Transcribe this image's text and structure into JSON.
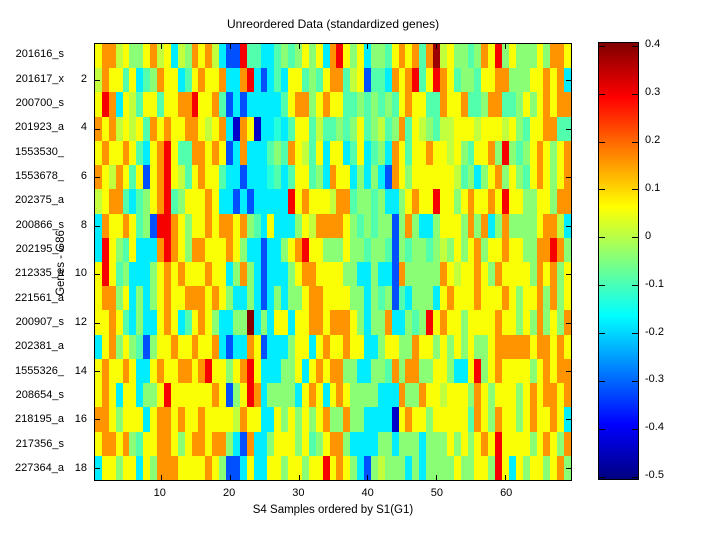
{
  "figure": {
    "title": "Unreordered Data (standardized genes)",
    "xlabel": "S4 Samples ordered by S1(G1)",
    "ylabel": "Genes - G86"
  },
  "chart_data": {
    "type": "heatmap",
    "title": "Unreordered Data (standardized genes)",
    "xlabel": "S4 Samples ordered by S1(G1)",
    "ylabel": "Genes - G86",
    "n_rows": 18,
    "n_cols": 69,
    "x_ticks": [
      10,
      20,
      30,
      40,
      50,
      60
    ],
    "y_ticks": [
      2,
      4,
      6,
      8,
      10,
      12,
      14,
      16,
      18
    ],
    "row_labels": [
      "201616_s",
      "201617_x",
      "200700_s",
      "201923_a",
      "1553530_",
      "1553678_",
      "202375_a",
      "200866_s",
      "202195_s",
      "212335_a",
      "221561_a",
      "200907_s",
      "202381_a",
      "1555326_",
      "208654_s",
      "218195_a",
      "217356_s",
      "227364_a"
    ],
    "color_scale": {
      "colormap": "jet",
      "min": -0.505,
      "max": 0.406,
      "colorbar_ticks": [
        0.4,
        0.3,
        0.2,
        0.1,
        0,
        -0.1,
        -0.2,
        -0.3,
        -0.4,
        -0.5
      ]
    },
    "values": [
      [
        0.06,
        0.16,
        0.16,
        0.01,
        0.06,
        -0.04,
        -0.04,
        0.06,
        0.16,
        0.01,
        0.06,
        -0.18,
        0.01,
        -0.04,
        0.16,
        0.06,
        0.16,
        0.01,
        -0.18,
        -0.32,
        -0.32,
        0.3,
        -0.09,
        -0.09,
        -0.18,
        -0.18,
        -0.09,
        -0.04,
        -0.09,
        -0.04,
        0.06,
        -0.04,
        0.06,
        -0.18,
        0.16,
        0.3,
        0.06,
        -0.04,
        0.06,
        -0.18,
        -0.04,
        -0.04,
        -0.09,
        0.06,
        0.16,
        0.06,
        0.16,
        -0.09,
        0.16,
        0.38,
        0.01,
        0.06,
        -0.04,
        -0.04,
        -0.09,
        -0.04,
        0.16,
        0.06,
        0.3,
        -0.04,
        0.06,
        -0.04,
        -0.04,
        -0.04,
        0.06,
        -0.04,
        0.16,
        0.16,
        0.06
      ],
      [
        0.01,
        0.16,
        0.06,
        0.06,
        -0.09,
        0.06,
        -0.18,
        -0.09,
        -0.04,
        0.16,
        0.06,
        0.06,
        -0.18,
        -0.09,
        0.06,
        0.16,
        0.06,
        0.06,
        0.16,
        -0.18,
        -0.18,
        0.16,
        0.3,
        -0.18,
        -0.32,
        -0.18,
        -0.09,
        -0.18,
        0.06,
        0.06,
        -0.09,
        -0.04,
        -0.09,
        0.06,
        0.16,
        0.16,
        -0.09,
        0.01,
        0.06,
        -0.32,
        -0.09,
        -0.09,
        -0.18,
        0.16,
        0.06,
        0.16,
        0.3,
        -0.09,
        0.06,
        0.3,
        0.16,
        0.06,
        -0.09,
        -0.04,
        -0.04,
        -0.09,
        0.06,
        0.06,
        0.16,
        0.16,
        -0.04,
        -0.04,
        -0.04,
        0.06,
        0.06,
        0.16,
        0.06,
        0.16,
        -0.18
      ],
      [
        0.06,
        0.3,
        0.16,
        -0.18,
        0.06,
        0.01,
        -0.09,
        0.06,
        0.06,
        -0.09,
        0.06,
        0.06,
        0.16,
        0.16,
        0.3,
        0.06,
        0.06,
        0.16,
        -0.09,
        -0.32,
        -0.18,
        -0.32,
        -0.18,
        -0.18,
        -0.18,
        -0.18,
        -0.18,
        -0.09,
        0.06,
        0.16,
        0.16,
        -0.04,
        0.06,
        0.16,
        0.06,
        0.06,
        -0.09,
        -0.09,
        -0.04,
        -0.09,
        -0.04,
        -0.09,
        -0.04,
        -0.09,
        0.06,
        0.16,
        0.06,
        0.06,
        -0.09,
        -0.09,
        0.16,
        0.06,
        0.06,
        0.16,
        -0.09,
        -0.09,
        -0.04,
        0.16,
        0.16,
        -0.09,
        -0.09,
        -0.04,
        0.06,
        -0.04,
        0.06,
        0.16,
        0.06,
        0.16,
        0.16
      ],
      [
        0.16,
        0.06,
        0.16,
        0.01,
        0.06,
        0.01,
        0.06,
        -0.09,
        0.16,
        0.06,
        0.16,
        0.06,
        0.06,
        0.16,
        0.16,
        0.06,
        0.01,
        0.06,
        0.16,
        -0.18,
        -0.44,
        0.16,
        0.06,
        -0.44,
        -0.18,
        -0.18,
        -0.13,
        -0.18,
        -0.09,
        0.06,
        0.06,
        -0.09,
        0.01,
        -0.09,
        -0.09,
        -0.04,
        -0.09,
        -0.04,
        0.06,
        -0.09,
        -0.04,
        0.01,
        -0.09,
        -0.04,
        0.16,
        -0.09,
        0.06,
        0.01,
        -0.04,
        -0.09,
        0.01,
        0.01,
        0.06,
        0.06,
        0.06,
        0.01,
        0.06,
        0.06,
        0.06,
        0.01,
        0.06,
        -0.04,
        -0.09,
        0.06,
        0.06,
        0.16,
        0.16,
        -0.09,
        -0.09
      ],
      [
        0.06,
        0.16,
        0.06,
        0.06,
        0.16,
        0.06,
        -0.09,
        -0.18,
        0.06,
        0.16,
        0.3,
        0.06,
        -0.09,
        -0.09,
        0.16,
        0.16,
        0.06,
        0.16,
        0.06,
        -0.32,
        -0.18,
        0.16,
        -0.18,
        -0.18,
        -0.18,
        -0.09,
        -0.04,
        -0.09,
        0.16,
        0.06,
        0.01,
        -0.09,
        0.06,
        -0.18,
        0.06,
        0.06,
        -0.18,
        -0.09,
        0.06,
        -0.18,
        -0.09,
        -0.04,
        -0.18,
        0.16,
        0.06,
        -0.09,
        0.06,
        0.06,
        0.16,
        0.06,
        0.06,
        0.01,
        0.06,
        -0.04,
        -0.09,
        0.06,
        0.06,
        0.16,
        -0.04,
        0.3,
        -0.04,
        -0.09,
        -0.04,
        0.06,
        0.16,
        0.06,
        -0.04,
        0.06,
        0.16
      ],
      [
        0.16,
        0.06,
        0.01,
        0.16,
        0.06,
        -0.09,
        0.06,
        -0.32,
        0.06,
        0.16,
        0.3,
        0.06,
        0.01,
        -0.09,
        0.06,
        0.16,
        0.06,
        0.06,
        -0.09,
        -0.18,
        -0.18,
        -0.32,
        -0.18,
        -0.18,
        -0.18,
        -0.13,
        -0.09,
        -0.18,
        -0.09,
        0.06,
        0.06,
        -0.09,
        -0.04,
        -0.18,
        0.16,
        0.06,
        0.06,
        -0.18,
        -0.04,
        -0.18,
        -0.04,
        -0.18,
        -0.32,
        0.16,
        0.06,
        -0.04,
        0.06,
        0.06,
        0.06,
        0.06,
        0.06,
        0.06,
        0.01,
        -0.09,
        -0.04,
        -0.18,
        -0.04,
        0.06,
        0.16,
        -0.04,
        0.06,
        -0.04,
        -0.09,
        0.06,
        0.16,
        0.06,
        -0.04,
        0.06,
        0.16
      ],
      [
        0.01,
        0.06,
        0.16,
        0.16,
        -0.09,
        -0.18,
        -0.09,
        -0.04,
        0.06,
        0.16,
        0.3,
        -0.09,
        -0.04,
        0.06,
        0.06,
        0.06,
        0.16,
        0.06,
        -0.18,
        -0.18,
        -0.32,
        -0.18,
        -0.32,
        -0.18,
        -0.18,
        -0.18,
        -0.18,
        -0.18,
        0.3,
        0.06,
        0.16,
        0.06,
        0.06,
        0.06,
        0.01,
        0.16,
        0.16,
        -0.09,
        -0.04,
        -0.04,
        -0.09,
        -0.04,
        -0.18,
        -0.18,
        -0.04,
        0.06,
        0.16,
        0.06,
        0.06,
        0.3,
        0.06,
        0.06,
        -0.04,
        0.06,
        0.16,
        0.06,
        0.06,
        0.16,
        0.06,
        0.3,
        0.06,
        0.06,
        -0.04,
        -0.04,
        0.06,
        0.06,
        -0.04,
        0.16,
        0.16
      ],
      [
        -0.18,
        0.16,
        0.06,
        0.06,
        0.16,
        0.06,
        -0.09,
        -0.04,
        -0.32,
        0.3,
        0.3,
        0.16,
        0.06,
        -0.04,
        0.06,
        0.06,
        0.16,
        0.06,
        0.16,
        0.16,
        0.06,
        0.16,
        -0.04,
        -0.09,
        -0.18,
        0.06,
        -0.18,
        -0.18,
        -0.18,
        -0.04,
        0.06,
        0.01,
        0.16,
        0.16,
        0.16,
        0.16,
        0.06,
        -0.04,
        -0.09,
        -0.04,
        -0.09,
        -0.04,
        -0.04,
        -0.32,
        -0.04,
        0.16,
        -0.04,
        -0.18,
        -0.18,
        -0.04,
        0.06,
        0.06,
        0.06,
        -0.04,
        0.16,
        -0.04,
        0.16,
        -0.18,
        -0.04,
        0.16,
        -0.04,
        -0.04,
        -0.04,
        -0.04,
        0.06,
        0.16,
        0.16,
        0.01,
        -0.18
      ],
      [
        -0.18,
        0.3,
        0.06,
        -0.04,
        -0.09,
        0.06,
        -0.18,
        -0.18,
        -0.18,
        0.16,
        0.3,
        0.16,
        0.06,
        -0.04,
        0.16,
        0.16,
        0.06,
        0.06,
        0.06,
        0.16,
        0.06,
        -0.04,
        -0.18,
        -0.18,
        -0.32,
        -0.18,
        -0.18,
        -0.04,
        0.06,
        0.16,
        0.3,
        0.06,
        0.06,
        -0.04,
        -0.04,
        -0.04,
        0.06,
        -0.04,
        -0.04,
        -0.09,
        -0.04,
        -0.04,
        -0.09,
        -0.32,
        -0.04,
        -0.09,
        -0.04,
        -0.04,
        -0.09,
        -0.04,
        0.01,
        -0.04,
        0.06,
        -0.04,
        0.06,
        0.16,
        -0.04,
        0.06,
        0.06,
        0.16,
        0.06,
        0.06,
        -0.04,
        -0.04,
        0.16,
        0.16,
        0.3,
        0.16,
        -0.04
      ],
      [
        0.06,
        0.3,
        0.06,
        -0.09,
        -0.04,
        -0.18,
        -0.18,
        -0.18,
        -0.04,
        0.06,
        0.16,
        0.06,
        0.16,
        0.06,
        0.06,
        0.06,
        0.16,
        0.06,
        0.06,
        -0.18,
        -0.04,
        0.16,
        -0.04,
        -0.18,
        -0.32,
        -0.18,
        -0.18,
        -0.18,
        -0.04,
        0.06,
        0.16,
        0.16,
        0.06,
        0.06,
        0.06,
        0.06,
        -0.04,
        -0.04,
        -0.18,
        -0.18,
        -0.04,
        -0.18,
        -0.18,
        -0.32,
        0.16,
        -0.04,
        -0.04,
        -0.04,
        -0.04,
        -0.04,
        0.16,
        0.06,
        0.01,
        0.06,
        0.06,
        0.16,
        0.06,
        -0.04,
        0.16,
        0.06,
        0.06,
        0.06,
        0.06,
        -0.04,
        0.16,
        0.06,
        0.16,
        -0.04,
        0.06
      ],
      [
        0.06,
        0.16,
        0.16,
        -0.04,
        0.06,
        -0.18,
        -0.04,
        -0.18,
        -0.04,
        0.06,
        0.16,
        0.06,
        0.06,
        0.16,
        0.16,
        0.16,
        0.06,
        0.16,
        0.06,
        -0.04,
        -0.18,
        -0.18,
        -0.04,
        -0.18,
        -0.32,
        -0.18,
        -0.04,
        -0.18,
        -0.04,
        -0.04,
        0.06,
        0.16,
        0.16,
        0.06,
        0.06,
        0.06,
        0.06,
        -0.04,
        -0.04,
        -0.18,
        -0.04,
        -0.09,
        -0.04,
        -0.32,
        -0.09,
        -0.18,
        -0.04,
        -0.04,
        -0.04,
        -0.18,
        0.06,
        0.16,
        0.06,
        0.06,
        0.06,
        0.16,
        0.06,
        0.06,
        0.06,
        0.16,
        0.06,
        -0.04,
        0.06,
        0.06,
        0.16,
        -0.04,
        0.16,
        -0.04,
        0.06
      ],
      [
        0.06,
        0.06,
        0.16,
        0.06,
        -0.09,
        -0.18,
        -0.04,
        -0.18,
        -0.18,
        0.06,
        0.16,
        0.06,
        -0.18,
        -0.09,
        0.06,
        0.16,
        0.06,
        -0.04,
        -0.18,
        -0.18,
        -0.04,
        -0.04,
        0.4,
        -0.18,
        -0.04,
        -0.18,
        0.06,
        0.06,
        -0.18,
        0.06,
        0.06,
        0.16,
        0.16,
        0.06,
        0.16,
        0.16,
        0.16,
        0.06,
        -0.04,
        -0.18,
        -0.04,
        -0.04,
        0.16,
        -0.18,
        -0.18,
        -0.04,
        -0.09,
        -0.04,
        0.3,
        0.06,
        0.16,
        0.06,
        0.06,
        -0.04,
        0.06,
        0.06,
        0.06,
        0.06,
        0.16,
        0.06,
        0.06,
        -0.04,
        0.06,
        -0.04,
        0.16,
        -0.04,
        0.06,
        -0.04,
        0.16
      ],
      [
        -0.18,
        0.06,
        0.16,
        -0.04,
        0.06,
        -0.04,
        -0.09,
        -0.32,
        -0.04,
        0.06,
        0.06,
        0.16,
        0.06,
        0.06,
        0.16,
        0.06,
        0.06,
        0.16,
        -0.18,
        -0.32,
        -0.18,
        -0.18,
        0.16,
        0.06,
        -0.32,
        -0.18,
        -0.18,
        -0.18,
        -0.04,
        0.06,
        0.06,
        -0.18,
        0.06,
        0.16,
        0.06,
        0.06,
        0.16,
        0.06,
        0.06,
        -0.18,
        -0.18,
        -0.04,
        0.06,
        0.06,
        -0.04,
        -0.04,
        0.16,
        0.06,
        0.06,
        -0.04,
        0.06,
        -0.04,
        0.06,
        -0.04,
        0.06,
        -0.04,
        -0.04,
        0.06,
        0.16,
        0.16,
        0.16,
        0.16,
        0.16,
        0.06,
        0.16,
        0.16,
        0.06,
        0.16,
        0.06
      ],
      [
        0.06,
        0.16,
        0.06,
        0.06,
        0.16,
        0.06,
        -0.18,
        -0.18,
        0.06,
        0.16,
        0.06,
        0.06,
        0.16,
        0.16,
        0.06,
        0.16,
        0.3,
        0.06,
        0.06,
        -0.04,
        0.06,
        0.16,
        0.3,
        0.06,
        -0.18,
        -0.18,
        -0.18,
        -0.04,
        -0.04,
        0.06,
        -0.18,
        0.06,
        0.16,
        0.06,
        0.16,
        0.16,
        -0.04,
        -0.04,
        -0.18,
        -0.18,
        -0.04,
        -0.04,
        -0.09,
        0.16,
        -0.04,
        0.16,
        0.16,
        -0.04,
        -0.04,
        0.06,
        0.06,
        -0.04,
        -0.18,
        -0.18,
        0.06,
        0.3,
        -0.04,
        0.06,
        0.16,
        0.06,
        0.06,
        0.06,
        0.06,
        -0.04,
        0.06,
        0.16,
        0.06,
        0.16,
        0.16
      ],
      [
        0.06,
        0.16,
        0.06,
        -0.18,
        0.06,
        0.06,
        -0.18,
        -0.04,
        -0.04,
        0.06,
        0.3,
        0.06,
        0.06,
        0.06,
        0.06,
        0.06,
        0.06,
        0.16,
        0.06,
        -0.32,
        -0.04,
        0.06,
        0.3,
        0.16,
        -0.18,
        -0.04,
        -0.04,
        -0.04,
        -0.04,
        -0.18,
        0.06,
        0.16,
        0.06,
        -0.18,
        0.06,
        0.16,
        0.06,
        -0.04,
        -0.04,
        -0.04,
        -0.04,
        -0.18,
        -0.18,
        -0.18,
        0.16,
        -0.04,
        -0.04,
        0.16,
        0.06,
        0.06,
        0.01,
        0.06,
        0.06,
        0.06,
        -0.04,
        0.16,
        0.06,
        -0.04,
        0.06,
        0.06,
        0.06,
        -0.04,
        0.06,
        0.16,
        0.06,
        0.16,
        0.16,
        0.06,
        0.16
      ],
      [
        0.16,
        0.16,
        0.06,
        -0.04,
        0.06,
        0.06,
        0.06,
        -0.18,
        0.06,
        0.16,
        0.16,
        0.06,
        0.16,
        0.06,
        0.06,
        0.16,
        0.06,
        0.06,
        0.06,
        0.06,
        0.01,
        0.16,
        0.06,
        0.06,
        -0.18,
        -0.18,
        0.06,
        -0.04,
        0.06,
        -0.04,
        0.06,
        -0.04,
        0.06,
        0.16,
        -0.04,
        -0.04,
        0.16,
        -0.04,
        -0.04,
        -0.18,
        -0.18,
        -0.18,
        -0.18,
        -0.44,
        0.06,
        0.16,
        0.06,
        0.06,
        -0.04,
        0.06,
        0.06,
        0.06,
        0.06,
        0.06,
        -0.09,
        0.16,
        0.06,
        -0.04,
        0.16,
        0.06,
        0.06,
        -0.04,
        0.06,
        0.16,
        0.06,
        0.06,
        0.16,
        0.06,
        -0.18
      ],
      [
        0.06,
        0.16,
        0.16,
        0.06,
        0.16,
        -0.04,
        -0.09,
        0.06,
        0.06,
        0.16,
        0.16,
        0.06,
        -0.04,
        0.06,
        0.16,
        0.16,
        0.06,
        0.16,
        0.16,
        -0.04,
        -0.18,
        -0.32,
        0.16,
        -0.18,
        -0.18,
        -0.04,
        0.06,
        0.06,
        0.06,
        -0.04,
        0.06,
        -0.09,
        -0.04,
        0.06,
        0.16,
        0.16,
        -0.04,
        -0.18,
        -0.18,
        -0.18,
        -0.18,
        -0.04,
        -0.04,
        -0.18,
        -0.04,
        -0.04,
        -0.04,
        -0.18,
        -0.04,
        -0.04,
        -0.04,
        0.06,
        -0.04,
        0.06,
        -0.04,
        0.06,
        0.16,
        0.06,
        0.3,
        0.06,
        0.06,
        0.06,
        0.06,
        -0.04,
        0.06,
        0.16,
        0.06,
        -0.04,
        0.16
      ],
      [
        -0.18,
        0.06,
        0.06,
        -0.04,
        0.06,
        0.06,
        -0.18,
        0.06,
        -0.04,
        0.16,
        0.16,
        0.16,
        0.06,
        0.06,
        0.06,
        0.06,
        0.16,
        0.06,
        -0.04,
        -0.32,
        -0.32,
        -0.18,
        0.06,
        -0.18,
        -0.18,
        0.06,
        0.06,
        -0.04,
        0.06,
        0.06,
        -0.04,
        0.06,
        0.06,
        0.3,
        0.06,
        0.16,
        0.06,
        -0.04,
        -0.18,
        -0.32,
        -0.04,
        0.01,
        -0.04,
        -0.04,
        -0.04,
        -0.18,
        -0.04,
        -0.18,
        -0.04,
        -0.04,
        -0.04,
        -0.04,
        0.06,
        -0.04,
        -0.04,
        0.06,
        0.06,
        -0.04,
        0.3,
        0.06,
        -0.18,
        0.06,
        -0.04,
        0.06,
        0.06,
        -0.04,
        0.06,
        0.16,
        -0.04
      ]
    ]
  }
}
